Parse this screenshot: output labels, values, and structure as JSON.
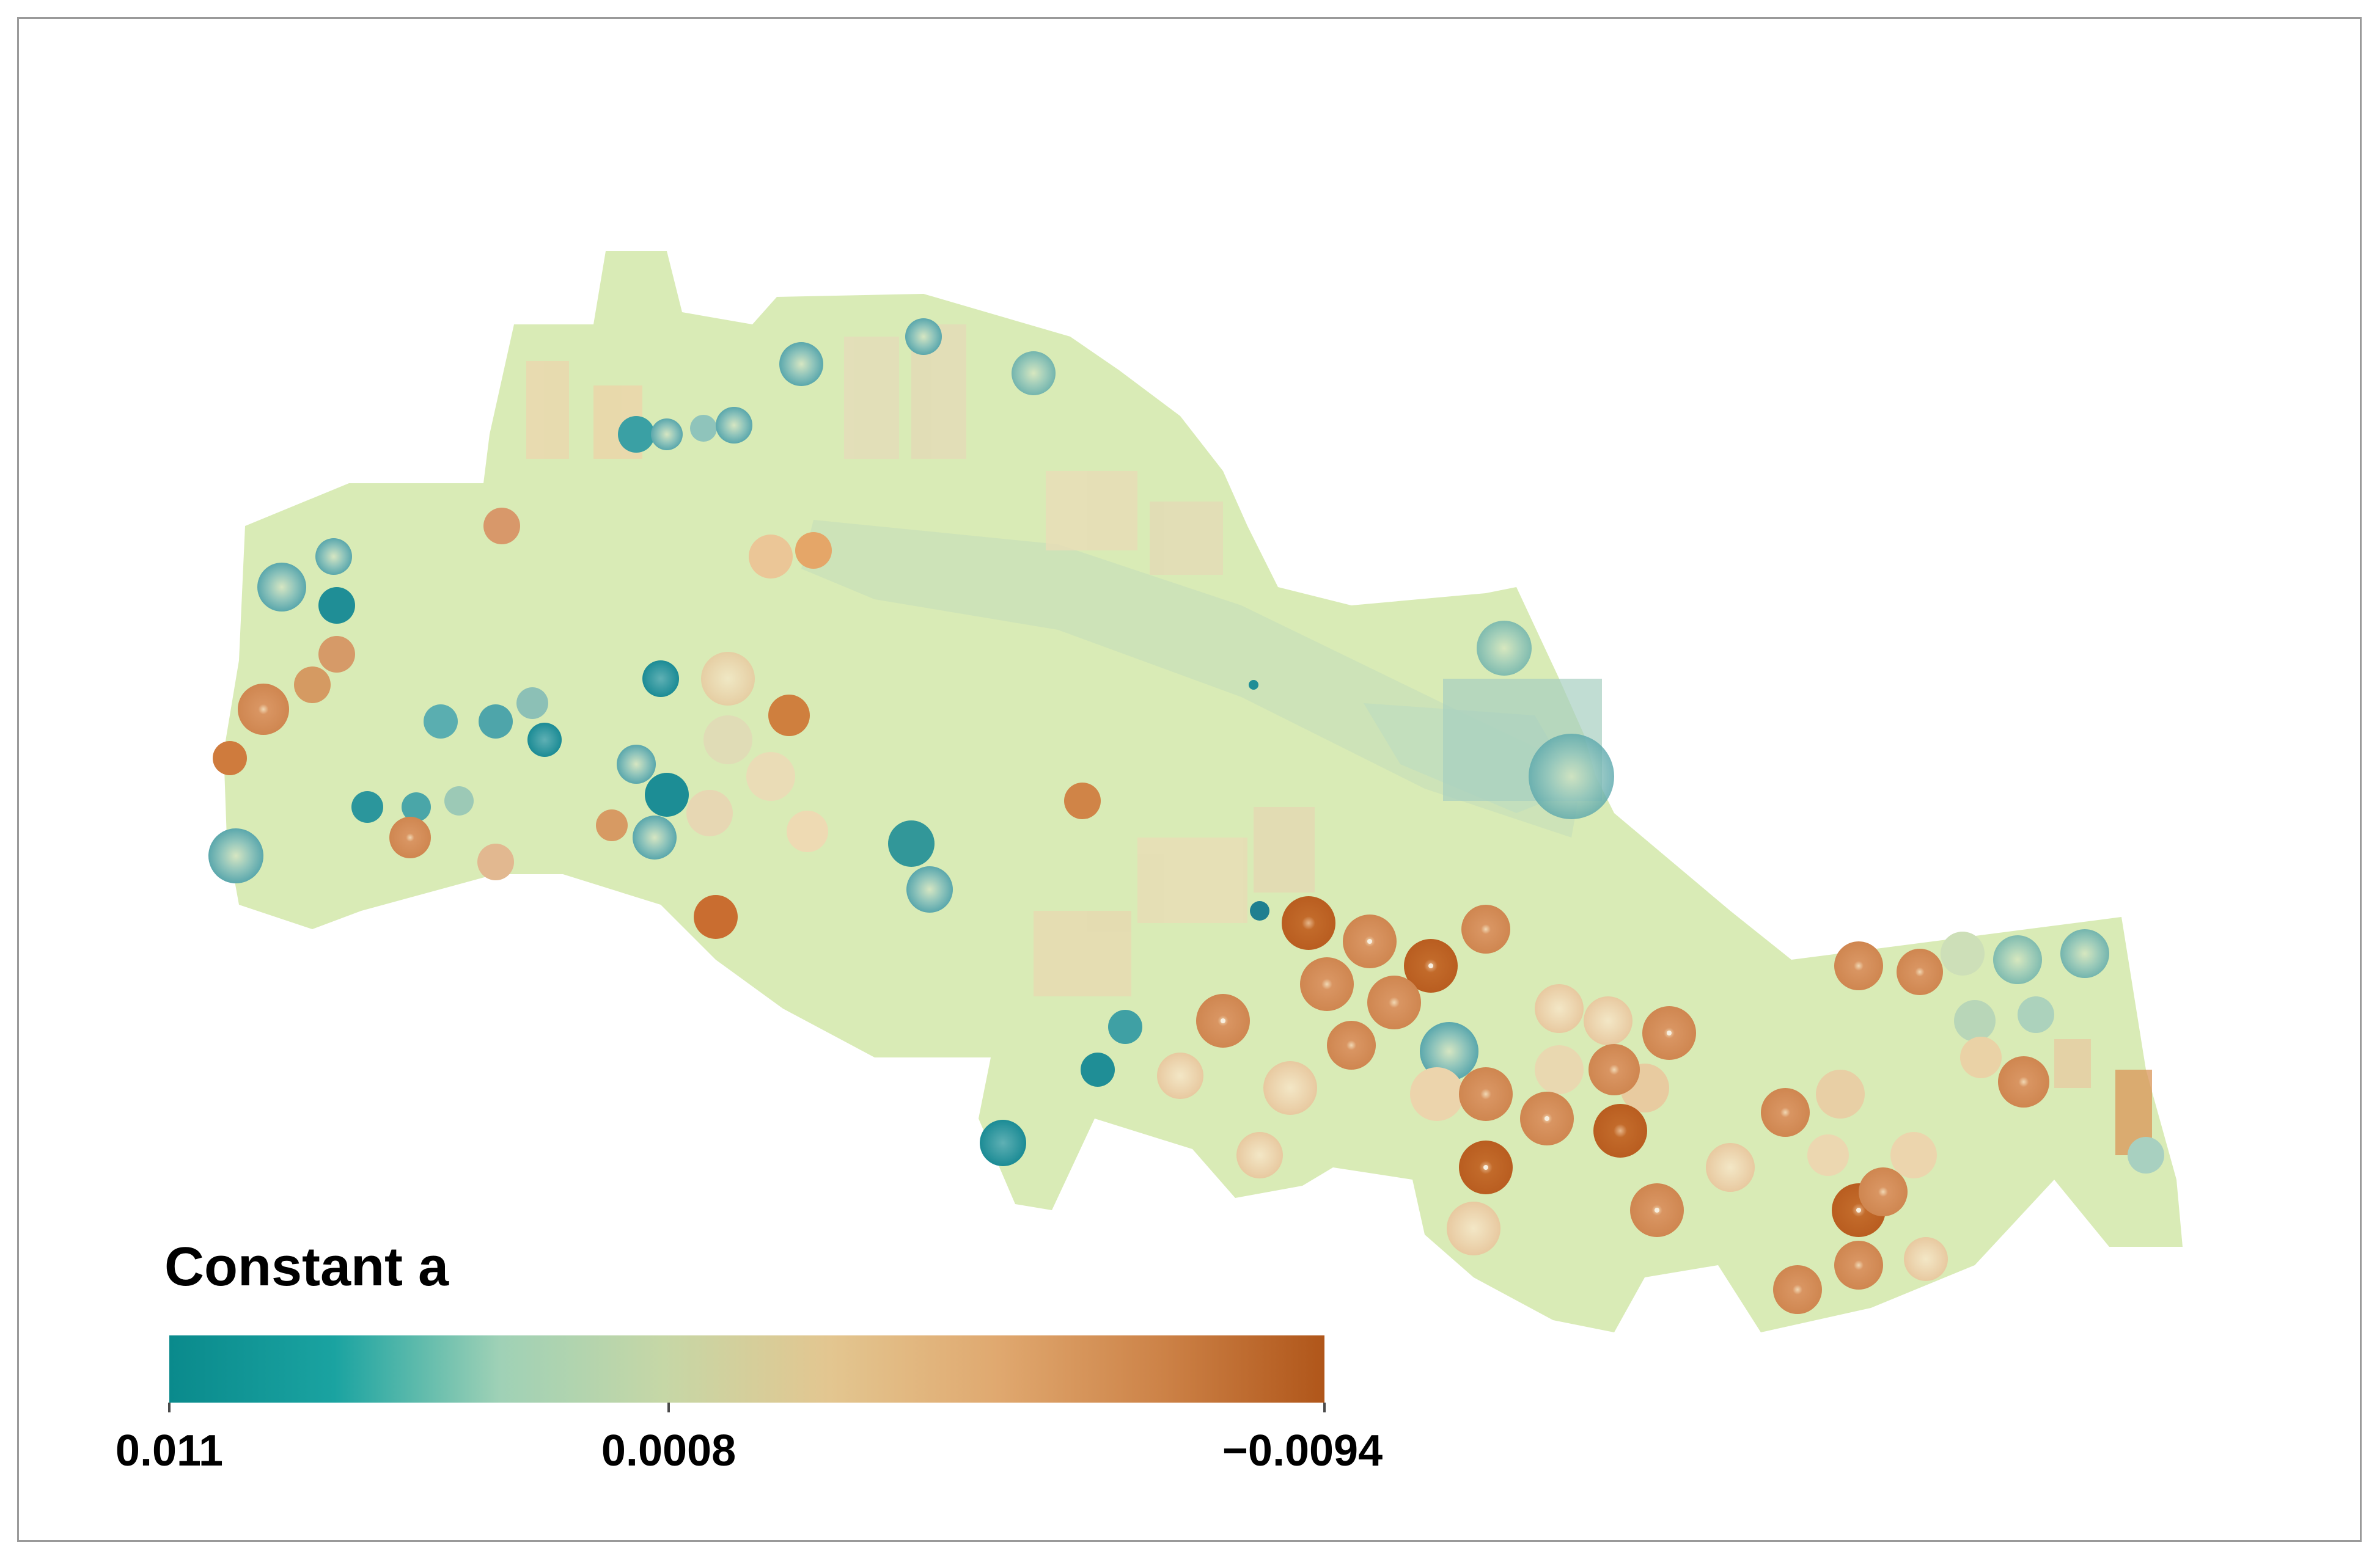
{
  "legend": {
    "title": "Constant a",
    "min_label": "0.011",
    "mid_label": "0.0008",
    "max_label": "−0.0094",
    "scale_min": 0.011,
    "scale_mid": 0.0008,
    "scale_max": -0.0094,
    "colormap_stops": [
      "#0a8a8c",
      "#1aa3a1",
      "#9fd1b6",
      "#c6d7a6",
      "#e3c690",
      "#e0a970",
      "#cd8348",
      "#b0561a"
    ]
  },
  "map": {
    "background_color": "#d9ebb6",
    "description_colors": {
      "positive_high": "#0e8a92",
      "positive_mid": "#7fbfb8",
      "neutral": "#d9ebb6",
      "light_warm": "#f0e0b8",
      "negative_mid": "#dca071",
      "negative_high": "#bf6a2c"
    }
  }
}
